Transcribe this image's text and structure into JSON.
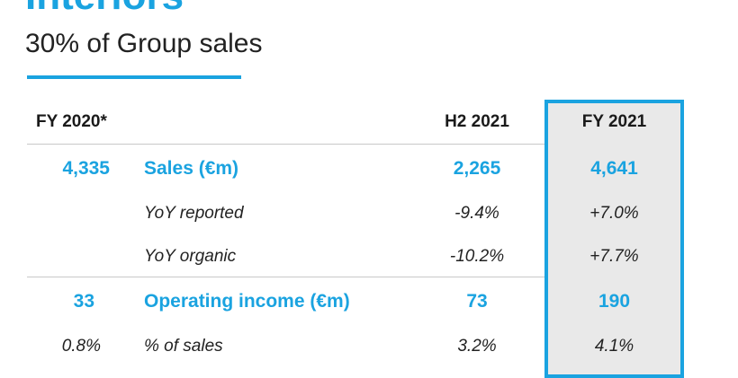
{
  "title": "Interiors",
  "subtitle": "30% of Group sales",
  "headers": {
    "prev": "FY 2020*",
    "h2": "H2 2021",
    "fy": "FY 2021"
  },
  "rows": [
    {
      "prev": "4,335",
      "label": "Sales (€m)",
      "h2": "2,265",
      "fy": "4,641",
      "style": "metric"
    },
    {
      "prev": "",
      "label": "YoY reported",
      "h2": "-9.4%",
      "fy": "+7.0%",
      "style": "sub"
    },
    {
      "prev": "",
      "label": "YoY organic",
      "h2": "-10.2%",
      "fy": "+7.7%",
      "style": "sub"
    },
    {
      "prev": "33",
      "label": "Operating income (€m)",
      "h2": "73",
      "fy": "190",
      "style": "metric"
    },
    {
      "prev": "0.8%",
      "label": "% of sales",
      "h2": "3.2%",
      "fy": "4.1%",
      "style": "sub"
    }
  ],
  "colors": {
    "accent": "#1aa3e0",
    "panel": "#e9e9e9"
  }
}
